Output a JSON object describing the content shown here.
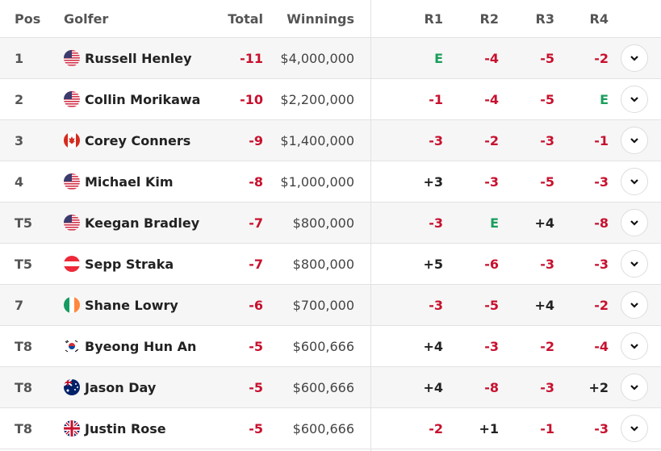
{
  "colors": {
    "under_par": "#c8102e",
    "even": "#1a9e5c",
    "over_par": "#222222"
  },
  "header": {
    "pos": "Pos",
    "golfer": "Golfer",
    "total": "Total",
    "winnings": "Winnings",
    "r1": "R1",
    "r2": "R2",
    "r3": "R3",
    "r4": "R4"
  },
  "rows": [
    {
      "pos": "1",
      "name": "Russell Henley",
      "flag": "usa",
      "total": "-11",
      "winnings": "$4,000,000",
      "r1": "E",
      "r2": "-4",
      "r3": "-5",
      "r4": "-2"
    },
    {
      "pos": "2",
      "name": "Collin Morikawa",
      "flag": "usa",
      "total": "-10",
      "winnings": "$2,200,000",
      "r1": "-1",
      "r2": "-4",
      "r3": "-5",
      "r4": "E"
    },
    {
      "pos": "3",
      "name": "Corey Conners",
      "flag": "canada",
      "total": "-9",
      "winnings": "$1,400,000",
      "r1": "-3",
      "r2": "-2",
      "r3": "-3",
      "r4": "-1"
    },
    {
      "pos": "4",
      "name": "Michael Kim",
      "flag": "usa",
      "total": "-8",
      "winnings": "$1,000,000",
      "r1": "+3",
      "r2": "-3",
      "r3": "-5",
      "r4": "-3"
    },
    {
      "pos": "T5",
      "name": "Keegan Bradley",
      "flag": "usa",
      "total": "-7",
      "winnings": "$800,000",
      "r1": "-3",
      "r2": "E",
      "r3": "+4",
      "r4": "-8"
    },
    {
      "pos": "T5",
      "name": "Sepp Straka",
      "flag": "austria",
      "total": "-7",
      "winnings": "$800,000",
      "r1": "+5",
      "r2": "-6",
      "r3": "-3",
      "r4": "-3"
    },
    {
      "pos": "7",
      "name": "Shane Lowry",
      "flag": "ireland",
      "total": "-6",
      "winnings": "$700,000",
      "r1": "-3",
      "r2": "-5",
      "r3": "+4",
      "r4": "-2"
    },
    {
      "pos": "T8",
      "name": "Byeong Hun An",
      "flag": "korea",
      "total": "-5",
      "winnings": "$600,666",
      "r1": "+4",
      "r2": "-3",
      "r3": "-2",
      "r4": "-4"
    },
    {
      "pos": "T8",
      "name": "Jason Day",
      "flag": "australia",
      "total": "-5",
      "winnings": "$600,666",
      "r1": "+4",
      "r2": "-8",
      "r3": "-3",
      "r4": "+2"
    },
    {
      "pos": "T8",
      "name": "Justin Rose",
      "flag": "uk",
      "total": "-5",
      "winnings": "$600,666",
      "r1": "-2",
      "r2": "+1",
      "r3": "-1",
      "r4": "-3"
    }
  ]
}
